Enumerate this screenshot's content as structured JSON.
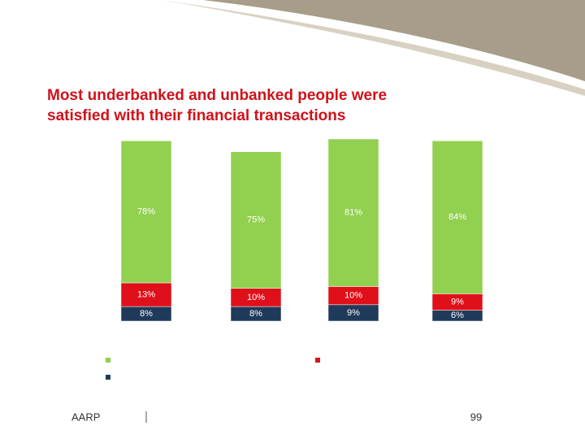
{
  "title": "Most underbanked and unbanked people were satisfied with their financial transactions",
  "footer": {
    "left": "AARP",
    "page": "99"
  },
  "chart_data": {
    "type": "stacked_bar",
    "series": [
      {
        "color": "#1f3a5a",
        "values": [
          8,
          8,
          9,
          6
        ],
        "value_labels": [
          "8%",
          "8%",
          "9%",
          "6%"
        ]
      },
      {
        "color": "#e0101a",
        "values": [
          13,
          10,
          10,
          9
        ],
        "value_labels": [
          "13%",
          "10%",
          "10%",
          "9%"
        ]
      },
      {
        "color": "#92d050",
        "values": [
          78,
          75,
          81,
          84
        ],
        "value_labels": [
          "78%",
          "75%",
          "81%",
          "84%"
        ]
      }
    ]
  }
}
